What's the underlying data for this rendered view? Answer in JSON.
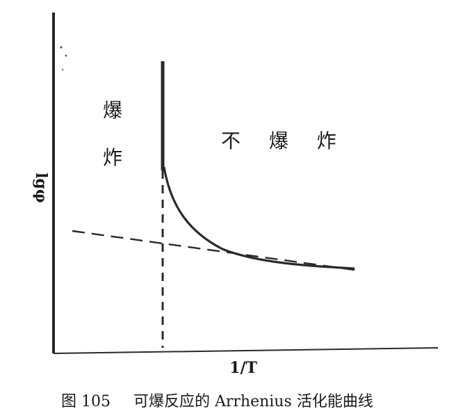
{
  "diagram": {
    "region_left_label": "爆\n炸",
    "region_right_label": "不 爆 炸",
    "y_axis_label": "lgφ",
    "x_axis_label": "1/T"
  },
  "caption": {
    "number": "图 105",
    "text": "可爆反应的 Arrhenius 活化能曲线"
  }
}
